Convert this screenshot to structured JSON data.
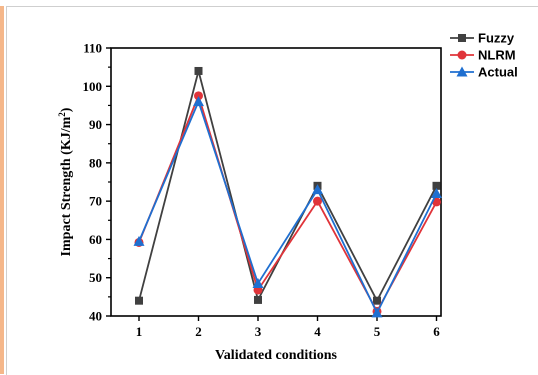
{
  "chart_data": {
    "type": "line",
    "title": "",
    "xlabel": "Validated conditions",
    "ylabel": "Impact Strength (KJ/m",
    "ylabel_superscript": "2",
    "ylabel_suffix": ")",
    "categories": [
      "1",
      "2",
      "3",
      "4",
      "5",
      "6"
    ],
    "ylim": [
      40,
      110
    ],
    "yticks": [
      40,
      50,
      60,
      70,
      80,
      90,
      100,
      110
    ],
    "grid": false,
    "legend_position": "top-right",
    "series": [
      {
        "name": "Fuzzy",
        "color": "#404040",
        "marker": "square",
        "values": [
          44.0,
          104.0,
          44.2,
          74.0,
          44.0,
          74.0
        ]
      },
      {
        "name": "NLRM",
        "color": "#e0343a",
        "marker": "circle",
        "values": [
          59.2,
          97.5,
          46.8,
          70.0,
          41.2,
          69.8
        ]
      },
      {
        "name": "Actual",
        "color": "#1f6fd0",
        "marker": "triangle",
        "values": [
          59.5,
          96.0,
          48.5,
          73.0,
          40.8,
          72.0
        ]
      }
    ]
  }
}
